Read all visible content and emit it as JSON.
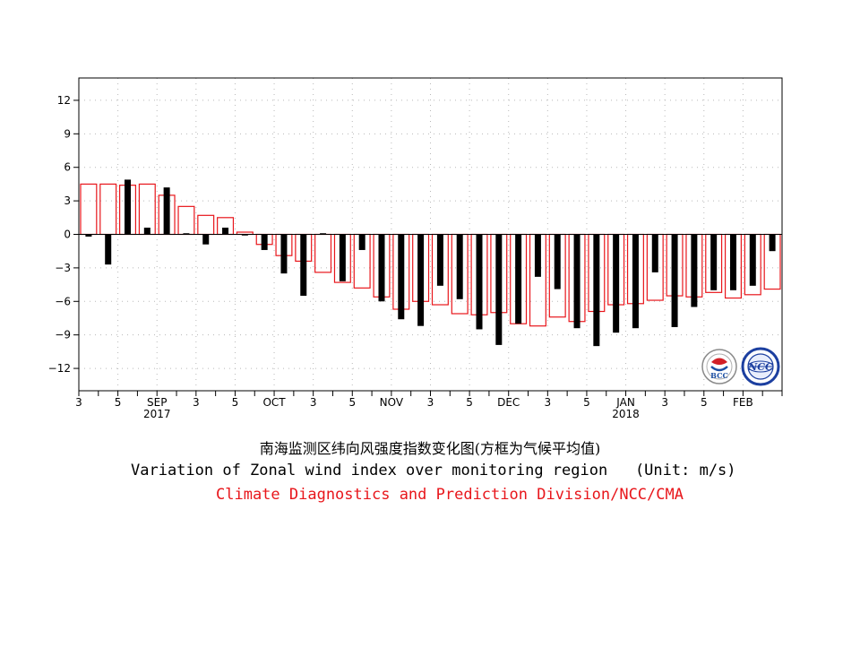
{
  "chart_data": {
    "type": "bar",
    "title_cn": "南海监测区纬向风强度指数变化图(方框为气候平均值)",
    "title_en": "Variation of Zonal wind index over monitoring region",
    "unit_label": "(Unit: m/s)",
    "credit": "Climate Diagnostics and Prediction Division/NCC/CMA",
    "ylim": [
      -14,
      14
    ],
    "yticks": [
      12,
      9,
      6,
      3,
      0,
      -3,
      -6,
      -9,
      -12
    ],
    "ytick_labels": [
      "12",
      "9",
      "6",
      "3",
      "0",
      "−3",
      "−6",
      "−9",
      "−12"
    ],
    "grid": true,
    "x_tick_labels": [
      {
        "label": "3",
        "pentad": 0
      },
      {
        "label": "5",
        "pentad": 2
      },
      {
        "label": "SEP",
        "label2": "2017",
        "pentad": 4
      },
      {
        "label": "3",
        "pentad": 6
      },
      {
        "label": "5",
        "pentad": 8
      },
      {
        "label": "OCT",
        "pentad": 10
      },
      {
        "label": "3",
        "pentad": 12
      },
      {
        "label": "5",
        "pentad": 14
      },
      {
        "label": "NOV",
        "pentad": 16
      },
      {
        "label": "3",
        "pentad": 18
      },
      {
        "label": "5",
        "pentad": 20
      },
      {
        "label": "DEC",
        "pentad": 22
      },
      {
        "label": "3",
        "pentad": 24
      },
      {
        "label": "5",
        "pentad": 26
      },
      {
        "label": "JAN",
        "label2": "2018",
        "pentad": 28
      },
      {
        "label": "3",
        "pentad": 30
      },
      {
        "label": "5",
        "pentad": 32
      },
      {
        "label": "FEB",
        "pentad": 34
      }
    ],
    "series": [
      {
        "name": "observed",
        "color": "#000000",
        "values": [
          -0.2,
          -2.7,
          4.9,
          0.6,
          4.2,
          0.1,
          -0.9,
          0.6,
          -0.1,
          -1.4,
          -3.5,
          -5.5,
          0.1,
          -4.2,
          -1.4,
          -6.0,
          -7.6,
          -8.2,
          -4.6,
          -5.8,
          -8.5,
          -9.9,
          -8.0,
          -3.8,
          -4.9,
          -8.4,
          -10.0,
          -8.8,
          -8.4,
          -3.4,
          -8.3,
          -6.5,
          -5.0,
          -5.0,
          -4.6,
          -1.5
        ]
      },
      {
        "name": "climatology",
        "color": "#e8161b",
        "values": [
          4.5,
          4.5,
          4.4,
          4.5,
          3.5,
          2.5,
          1.7,
          1.5,
          0.2,
          -0.9,
          -1.9,
          -2.4,
          -3.4,
          -4.3,
          -4.8,
          -5.6,
          -6.7,
          -6.0,
          -6.3,
          -7.1,
          -7.2,
          -7.0,
          -8.0,
          -8.2,
          -7.4,
          -7.8,
          -6.9,
          -6.3,
          -6.2,
          -5.9,
          -5.5,
          -5.6,
          -5.2,
          -5.7,
          -5.4,
          -4.9
        ]
      }
    ]
  },
  "logos": {
    "left": {
      "text": "BCC",
      "name": "bcc-logo"
    },
    "right": {
      "text": "NCC",
      "name": "ncc-logo"
    }
  }
}
